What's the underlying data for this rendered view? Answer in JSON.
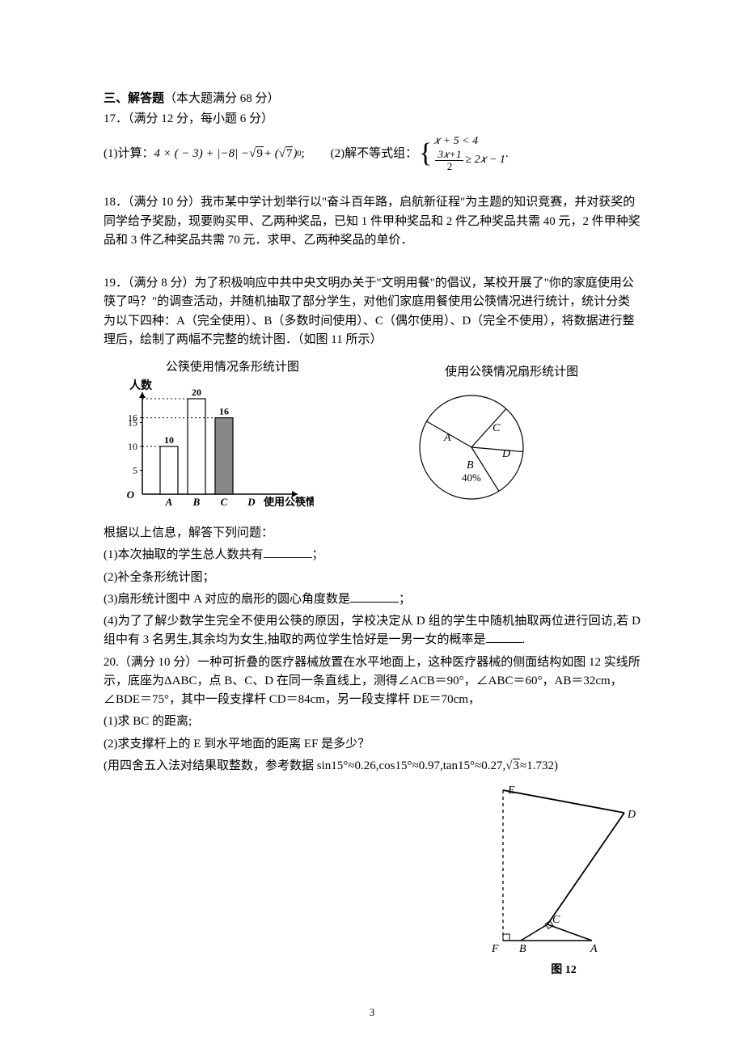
{
  "section": {
    "heading_strong": "三、解答题",
    "heading_sub": "（本大题满分 68 分）"
  },
  "q17": {
    "intro": "17．（满分 12 分，每小题 6 分）",
    "part1_label": "(1)计算：",
    "part1_expr": "4 × ( − 3) + |−8| − √9 + (√7)⁰;",
    "part2_label": "(2)解不等式组：",
    "sys_row1": "𝑥 + 5 < 4",
    "sys_row2_lhs_num": "3𝑥+1",
    "sys_row2_lhs_den": "2",
    "sys_row2_rhs": " ≥ 2𝑥 − 1",
    "sys_tail": "."
  },
  "q18": {
    "text": "18．（满分 10 分）我市某中学计划举行以\"奋斗百年路，启航新征程\"为主题的知识竞赛，并对获奖的同学给予奖励，现要购买甲、乙两种奖品，已知 1 件甲种奖品和 2 件乙种奖品共需 40 元，2 件甲种奖品和 3 件乙种奖品共需 70 元．求甲、乙两种奖品的单价．"
  },
  "q19": {
    "text": "19．（满分 8 分）为了积极响应中共中央文明办关于\"文明用餐\"的倡议，某校开展了\"你的家庭使用公筷了吗？\"的调查活动，并随机抽取了部分学生，对他们家庭用餐使用公筷情况进行统计，统计分类为以下四种：A（完全使用）、B（多数时间使用）、C（偶尔使用）、D（完全不使用），将数据进行整理后，绘制了两幅不完整的统计图．（如图 11 所示）",
    "fig_left_title": "公筷使用情况条形统计图",
    "fig_right_title": "使用公筷情况扇形统计图",
    "after": "根据以上信息，解答下列问题：",
    "p1": "(1)本次抽取的学生总人数共有",
    "p1_tail": "；",
    "p2": "(2)补全条形统计图；",
    "p3": "(3)扇形统计图中 A 对应的扇形的圆心角度数是",
    "p3_tail": "；",
    "p4": "(4)为了了解少数学生完全不使用公筷的原因，学校决定从 D 组的学生中随机抽取两位进行回访,若 D 组中有 3 名男生,其余均为女生,抽取的两位学生恰好是一男一女的概率是",
    "p4_tail": "."
  },
  "bar_chart": {
    "type": "bar",
    "y_label": "人数",
    "x_label": "使用公筷情况",
    "categories": [
      "A",
      "B",
      "C",
      "D"
    ],
    "values": [
      10,
      20,
      16,
      null
    ],
    "value_labels": [
      "10",
      "20",
      "16",
      ""
    ],
    "ylim": [
      0,
      20
    ],
    "yticks": [
      5,
      10,
      15,
      16
    ],
    "bar_fill": [
      "#ffffff",
      "#ffffff",
      "#888888",
      "#ffffff"
    ],
    "bar_stroke": "#000000",
    "axis_color": "#000000",
    "guide_dash": "2,3",
    "bg": "#ffffff",
    "label_fontsize": 12,
    "title_fontfamily": "KaiTi"
  },
  "pie_chart": {
    "type": "pie",
    "labels": [
      "A",
      "B",
      "C",
      "D"
    ],
    "B_label": "B",
    "B_pct": "40%",
    "A_label": "A",
    "C_label": "C",
    "D_label": "D",
    "stroke": "#000000",
    "fill": "#ffffff",
    "line_width": 1.2
  },
  "q20": {
    "text": "20.（满分 10 分）一种可折叠的医疗器械放置在水平地面上，这种医疗器械的侧面结构如图 12 实线所示，底座为ΔABC，点 B、C、D 在同一条直线上，测得∠ACB＝90°，∠ABC＝60°，AB＝32cm，∠BDE＝75°，其中一段支撑杆 CD＝84cm，另一段支撑杆 DE＝70cm，",
    "p1": "(1)求 BC 的距离;",
    "p2": "(2)求支撑杆上的 E 到水平地面的距离 EF 是多少？",
    "p3": "(用四舍五入法对结果取整数，参考数据 sin15°≈0.26,cos15°≈0.97,tan15°≈0.27,√3≈1.732)"
  },
  "fig12": {
    "caption": "图 12",
    "labels": {
      "E": "E",
      "D": "D",
      "C": "C",
      "B": "B",
      "A": "A",
      "F": "F"
    },
    "stroke": "#000000"
  },
  "page_number": "3"
}
